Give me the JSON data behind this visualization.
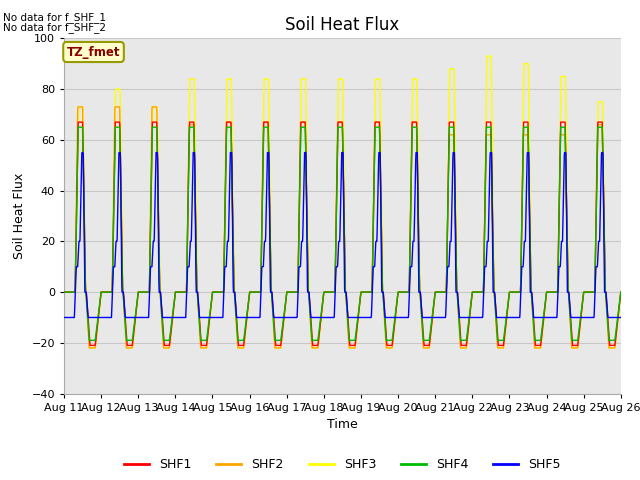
{
  "title": "Soil Heat Flux",
  "ylabel": "Soil Heat Flux",
  "xlabel": "Time",
  "ylim": [
    -40,
    100
  ],
  "yticks": [
    -40,
    -20,
    0,
    20,
    40,
    60,
    80,
    100
  ],
  "xtick_labels": [
    "Aug 11",
    "Aug 12",
    "Aug 13",
    "Aug 14",
    "Aug 15",
    "Aug 16",
    "Aug 17",
    "Aug 18",
    "Aug 19",
    "Aug 20",
    "Aug 21",
    "Aug 22",
    "Aug 23",
    "Aug 24",
    "Aug 25",
    "Aug 26"
  ],
  "no_data_text1": "No data for f_SHF_1",
  "no_data_text2": "No data for f_SHF_2",
  "legend_box_text": "TZ_fmet",
  "legend_entries": [
    "SHF1",
    "SHF2",
    "SHF3",
    "SHF4",
    "SHF5"
  ],
  "legend_colors": [
    "#ff0000",
    "#ffa500",
    "#ffff00",
    "#00bb00",
    "#0000ff"
  ],
  "plot_bg_color": "#e8e8e8",
  "outer_bg_color": "#ffffff",
  "grid_color": "#c8c8c8",
  "title_fontsize": 12,
  "label_fontsize": 9,
  "tick_fontsize": 8
}
